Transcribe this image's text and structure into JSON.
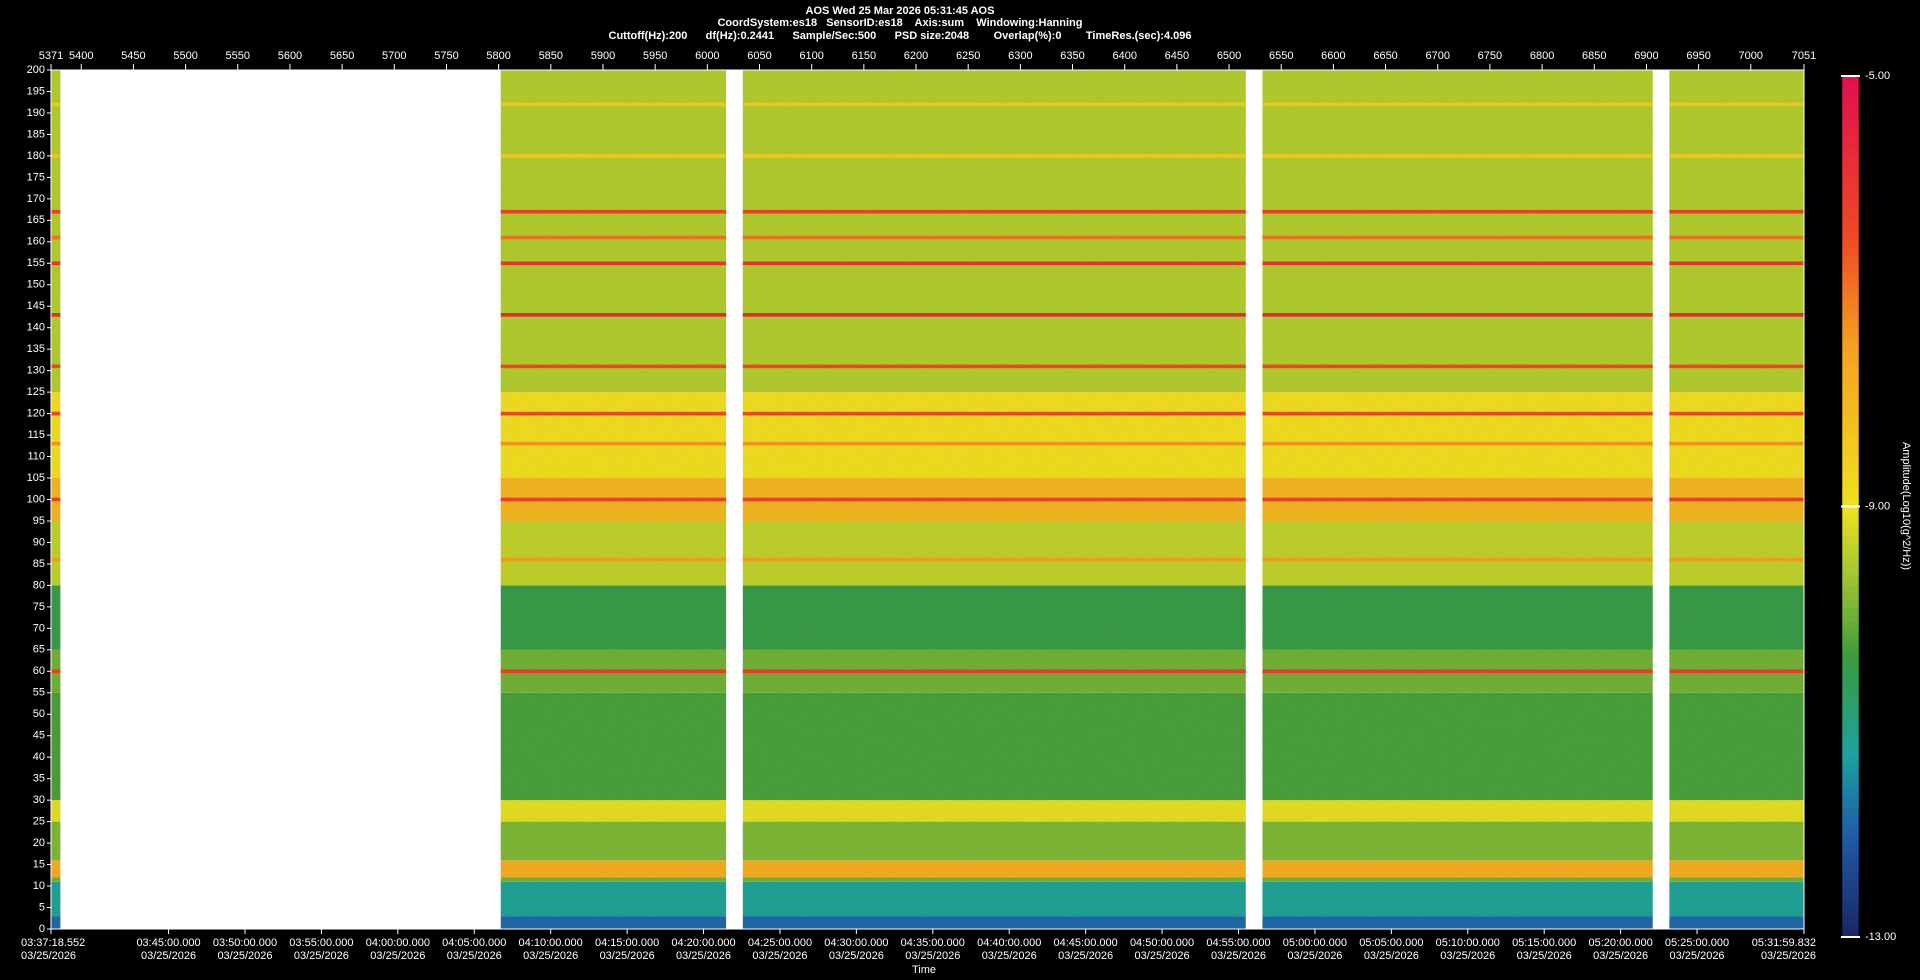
{
  "chart_data": {
    "type": "spectrogram",
    "title": "AOS  Wed 25 Mar 2026 05:31:45  AOS",
    "subtitle": "CoordSystem:es18   SensorID:es18    Axis:sum    Windowing:Hanning",
    "settings_line": "Cuttoff(Hz):200      df(Hz):0.2441      Sample/Sec:500      PSD size:2048        Overlap(%):0        TimeRes.(sec):4.096",
    "xlabel": "Time",
    "colorbar_label": "Amplitude(Log10(g^2/Hz))",
    "date": "03/25/2026",
    "xlim": [
      5371,
      7051
    ],
    "xticks_top": [
      5371,
      5400,
      5450,
      5500,
      5550,
      5600,
      5650,
      5700,
      5750,
      5800,
      5850,
      5900,
      5950,
      6000,
      6050,
      6100,
      6150,
      6200,
      6250,
      6300,
      6350,
      6400,
      6450,
      6500,
      6550,
      6600,
      6650,
      6700,
      6750,
      6800,
      6850,
      6900,
      6950,
      7000,
      7051
    ],
    "xticks": [
      {
        "value": 5371,
        "label": "03:37:18.552"
      },
      {
        "value": 5483.66,
        "label": "03:45:00.000"
      },
      {
        "value": 5556.9,
        "label": "03:50:00.000"
      },
      {
        "value": 5630.14,
        "label": "03:55:00.000"
      },
      {
        "value": 5703.38,
        "label": "04:00:00.000"
      },
      {
        "value": 5776.63,
        "label": "04:05:00.000"
      },
      {
        "value": 5849.87,
        "label": "04:10:00.000"
      },
      {
        "value": 5923.11,
        "label": "04:15:00.000"
      },
      {
        "value": 5996.35,
        "label": "04:20:00.000"
      },
      {
        "value": 6069.59,
        "label": "04:25:00.000"
      },
      {
        "value": 6142.83,
        "label": "04:30:00.000"
      },
      {
        "value": 6216.08,
        "label": "04:35:00.000"
      },
      {
        "value": 6289.32,
        "label": "04:40:00.000"
      },
      {
        "value": 6362.56,
        "label": "04:45:00.000"
      },
      {
        "value": 6435.8,
        "label": "04:50:00.000"
      },
      {
        "value": 6509.04,
        "label": "04:55:00.000"
      },
      {
        "value": 6582.28,
        "label": "05:00:00.000"
      },
      {
        "value": 6655.53,
        "label": "05:05:00.000"
      },
      {
        "value": 6728.77,
        "label": "05:10:00.000"
      },
      {
        "value": 6802.01,
        "label": "05:15:00.000"
      },
      {
        "value": 6875.25,
        "label": "05:20:00.000"
      },
      {
        "value": 6948.49,
        "label": "05:25:00.000"
      },
      {
        "value": 7051,
        "label": "05:31:59.832"
      }
    ],
    "ylim": [
      0,
      200
    ],
    "yticks": [
      0,
      5,
      10,
      15,
      20,
      25,
      30,
      35,
      40,
      45,
      50,
      55,
      60,
      65,
      70,
      75,
      80,
      85,
      90,
      95,
      100,
      105,
      110,
      115,
      120,
      125,
      130,
      135,
      140,
      145,
      150,
      155,
      160,
      165,
      170,
      175,
      180,
      185,
      190,
      195,
      200
    ],
    "clim": [
      -13,
      -5
    ],
    "cticks": [
      {
        "value": -13,
        "label": "-13.00"
      },
      {
        "value": -9,
        "label": "-9.00"
      },
      {
        "value": -5,
        "label": "-5.00"
      }
    ],
    "colormap": [
      {
        "value": -13,
        "color": "#1b2466"
      },
      {
        "value": -12,
        "color": "#1f5fa8"
      },
      {
        "value": -11.3,
        "color": "#1aa3a0"
      },
      {
        "value": -10.4,
        "color": "#3c9a3c"
      },
      {
        "value": -9.6,
        "color": "#a6c830"
      },
      {
        "value": -9,
        "color": "#f0e21e"
      },
      {
        "value": -7.5,
        "color": "#f5a020"
      },
      {
        "value": -6.5,
        "color": "#ee4a24"
      },
      {
        "value": -5,
        "color": "#e0104e"
      }
    ],
    "segments": [
      [
        5371,
        5380
      ],
      [
        5802,
        6018
      ],
      [
        6034,
        6516
      ],
      [
        6532,
        6906
      ],
      [
        6922,
        7051
      ]
    ],
    "bands": [
      {
        "from": 0,
        "to": 3,
        "level": -11.9
      },
      {
        "from": 3,
        "to": 11,
        "level": -11.2
      },
      {
        "from": 11,
        "to": 12,
        "level": -10
      },
      {
        "from": 12,
        "to": 16,
        "level": -7.8
      },
      {
        "from": 16,
        "to": 25,
        "level": -9.9
      },
      {
        "from": 25,
        "to": 30,
        "level": -9.1
      },
      {
        "from": 30,
        "to": 55,
        "level": -10.3
      },
      {
        "from": 55,
        "to": 65,
        "level": -10
      },
      {
        "from": 65,
        "to": 80,
        "level": -10.5
      },
      {
        "from": 80,
        "to": 95,
        "level": -9.4
      },
      {
        "from": 95,
        "to": 105,
        "level": -8
      },
      {
        "from": 105,
        "to": 125,
        "level": -8.9
      },
      {
        "from": 125,
        "to": 200,
        "level": -9.5
      }
    ],
    "lines": [
      {
        "freq": 60,
        "level": -6.2
      },
      {
        "freq": 86,
        "level": -7.5
      },
      {
        "freq": 100,
        "level": -6.3
      },
      {
        "freq": 113,
        "level": -7.4
      },
      {
        "freq": 120,
        "level": -6.5
      },
      {
        "freq": 131,
        "level": -6.5
      },
      {
        "freq": 143,
        "level": -5.7
      },
      {
        "freq": 155,
        "level": -6
      },
      {
        "freq": 161,
        "level": -7
      },
      {
        "freq": 167,
        "level": -6.3
      },
      {
        "freq": 180,
        "level": -8.5
      },
      {
        "freq": 192,
        "level": -8.5
      }
    ]
  }
}
